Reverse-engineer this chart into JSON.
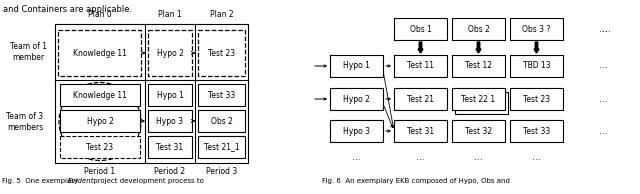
{
  "top_text": "and Containers are applicable.",
  "fig5_caption": [
    "Fig. 5  One exemplary ",
    "Evident",
    " project development process to"
  ],
  "fig6_caption": "Fig. 6  An exemplary EKB composed of Hypo, Obs and",
  "bg_color": "#ffffff",
  "font_size": 5.5,
  "caption_font_size": 5.2
}
